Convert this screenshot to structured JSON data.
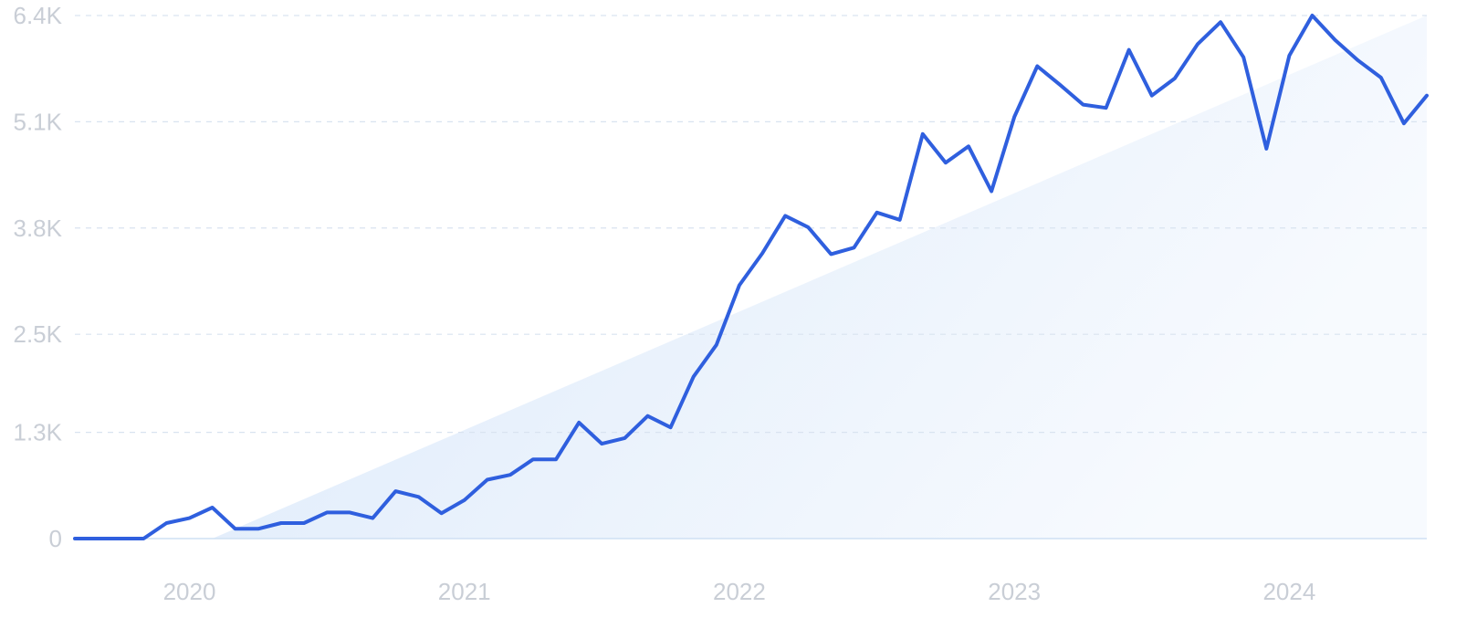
{
  "colors": {
    "line": "#2f5fde",
    "grid": "#d9e3f0",
    "tick_text": "#c9ced6",
    "area_fill": "#e3eefb",
    "baseline": "#cfe0f3"
  },
  "chart_data": {
    "type": "line",
    "title": "",
    "xlabel": "",
    "ylabel": "",
    "ylim": [
      0,
      6400
    ],
    "y_ticks": [
      0,
      1300,
      2500,
      3800,
      5100,
      6400
    ],
    "y_tick_labels": [
      "0",
      "1.3K",
      "2.5K",
      "3.8K",
      "5.1K",
      "6.4K"
    ],
    "x_tick_labels": [
      "2020",
      "2021",
      "2022",
      "2023",
      "2024"
    ],
    "x_tick_dates": [
      "2020-01",
      "2021-01",
      "2022-01",
      "2023-01",
      "2024-01"
    ],
    "grid": true,
    "legend": "none",
    "trend_band": {
      "start": [
        "2020-02",
        0
      ],
      "end": [
        "2024-07",
        6400
      ]
    },
    "series": [
      {
        "x": [
          "2019-08",
          "2019-09",
          "2019-10",
          "2019-11",
          "2019-12",
          "2020-01",
          "2020-02",
          "2020-03",
          "2020-04",
          "2020-05",
          "2020-06",
          "2020-07",
          "2020-08",
          "2020-09",
          "2020-10",
          "2020-11",
          "2020-12",
          "2021-01",
          "2021-02",
          "2021-03",
          "2021-04",
          "2021-05",
          "2021-06",
          "2021-07",
          "2021-08",
          "2021-09",
          "2021-10",
          "2021-11",
          "2021-12",
          "2022-01",
          "2022-02",
          "2022-03",
          "2022-04",
          "2022-05",
          "2022-06",
          "2022-07",
          "2022-08",
          "2022-09",
          "2022-10",
          "2022-11",
          "2022-12",
          "2023-01",
          "2023-02",
          "2023-03",
          "2023-04",
          "2023-05",
          "2023-06",
          "2023-07",
          "2023-08",
          "2023-09",
          "2023-10",
          "2023-11",
          "2023-12",
          "2024-01",
          "2024-02",
          "2024-03",
          "2024-04",
          "2024-05",
          "2024-06",
          "2024-07"
        ],
        "y": [
          0,
          0,
          0,
          0,
          190,
          250,
          380,
          120,
          120,
          190,
          190,
          320,
          320,
          250,
          580,
          510,
          310,
          470,
          720,
          780,
          970,
          970,
          1420,
          1160,
          1230,
          1500,
          1360,
          1980,
          2370,
          3100,
          3490,
          3950,
          3810,
          3480,
          3560,
          3990,
          3900,
          4950,
          4600,
          4800,
          4250,
          5160,
          5780,
          5550,
          5310,
          5270,
          5980,
          5420,
          5630,
          6050,
          6320,
          5890,
          4770,
          5910,
          6400,
          6100,
          5850,
          5640,
          5080,
          5420
        ]
      }
    ]
  }
}
